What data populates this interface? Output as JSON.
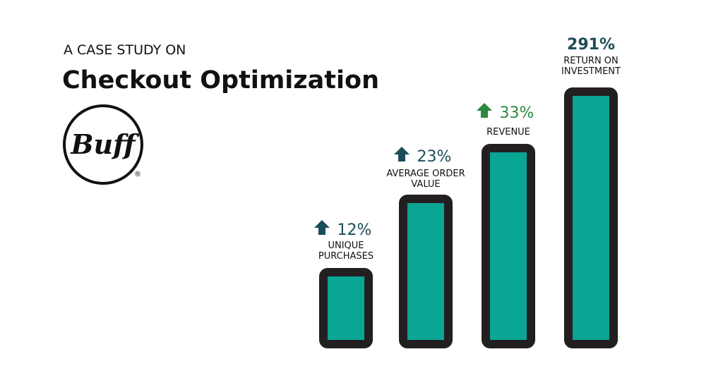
{
  "header": {
    "kicker": "A CASE STUDY ON",
    "title": "Checkout Optimization"
  },
  "logo": {
    "text": "Buff",
    "mark": "®"
  },
  "stats": [
    {
      "value": "12%",
      "label": [
        "UNIQUE",
        "PURCHASES"
      ],
      "color": "#1d4c59",
      "arrow": true
    },
    {
      "value": "23%",
      "label": [
        "AVERAGE ORDER",
        "VALUE"
      ],
      "color": "#1d4c59",
      "arrow": true
    },
    {
      "value": "33%",
      "label": [
        "REVENUE"
      ],
      "color": "#2b8a3e",
      "arrow": true
    },
    {
      "value": "291%",
      "label": [
        "RETURN ON",
        "INVESTMENT"
      ],
      "color": "#1d4c59",
      "arrow": false
    }
  ]
}
